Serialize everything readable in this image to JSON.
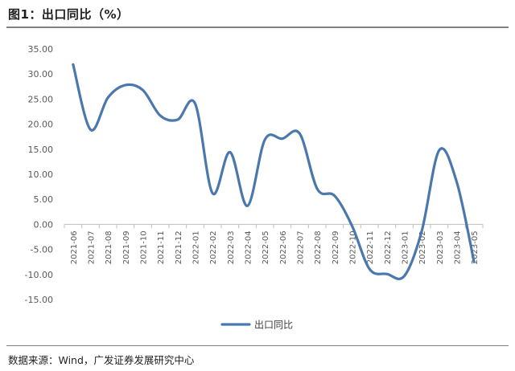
{
  "header": {
    "title": "图1：出口同比（%）"
  },
  "footer": {
    "source": "数据来源：Wind，广发证券发展研究中心"
  },
  "colors": {
    "series": "#4a78ad",
    "axis": "#bfbfbf",
    "text": "#595959"
  },
  "chart_data": {
    "type": "line",
    "title": "",
    "xlabel": "",
    "ylabel": "",
    "ylim": [
      -15,
      35
    ],
    "yticks": [
      "35.00",
      "30.00",
      "25.00",
      "20.00",
      "15.00",
      "10.00",
      "5.00",
      "0.00",
      "-5.00",
      "-10.00",
      "-15.00"
    ],
    "grid": false,
    "legend": "bottom-center",
    "categories": [
      "2021-06",
      "2021-07",
      "2021-08",
      "2021-09",
      "2021-10",
      "2021-11",
      "2021-12",
      "2022-01",
      "2022-02",
      "2022-03",
      "2022-04",
      "2022-05",
      "2022-06",
      "2022-07",
      "2022-08",
      "2022-09",
      "2022-10",
      "2022-11",
      "2022-12",
      "2023-01",
      "2023-02",
      "2023-03",
      "2023-04",
      "2023-05"
    ],
    "series": [
      {
        "name": "出口同比",
        "values": [
          31.9,
          18.9,
          25.3,
          27.8,
          26.8,
          21.7,
          20.9,
          24.1,
          6.2,
          14.4,
          3.7,
          16.9,
          17.1,
          18.1,
          7.1,
          5.7,
          -0.3,
          -8.9,
          -9.9,
          -10.3,
          -1.3,
          14.8,
          8.5,
          -7.5
        ]
      }
    ]
  }
}
